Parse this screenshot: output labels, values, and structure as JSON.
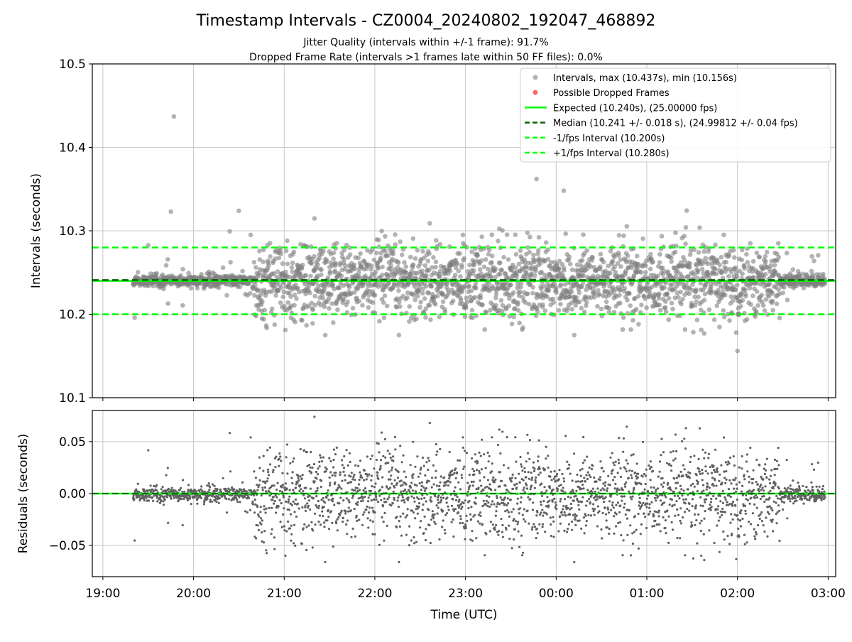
{
  "colors": {
    "intervals": "#808080",
    "dropped": "#ff0000",
    "expected": "#00ff00",
    "median": "#006400",
    "fps_interval": "#00ff00",
    "residuals": "#606060",
    "grid": "#c8c8c8"
  },
  "chart_data": [
    {
      "type": "scatter",
      "title": "Timestamp Intervals - CZ0004_20240802_192047_468892",
      "subtitle_lines": [
        "Jitter Quality (intervals within +/-1 frame): 91.7%",
        "Dropped Frame Rate (intervals >1 frames late within 50 FF files): 0.0%"
      ],
      "xlabel": "",
      "ylabel": "Intervals (seconds)",
      "ylim": [
        10.1,
        10.5
      ],
      "yticks": [
        "10.1",
        "10.2",
        "10.3",
        "10.4",
        "10.5"
      ],
      "x_axis": {
        "start": "19:00",
        "end": "03:00",
        "data_start": "19:20",
        "data_end": "02:58"
      },
      "grid": true,
      "legend_position": "top-right",
      "series": [
        {
          "name": "Intervals, max (10.437s), min (10.156s)",
          "kind": "points",
          "max": 10.437,
          "min": 10.156,
          "center": 10.241,
          "outliers": [
            {
              "x": "19:47",
              "y": 10.437
            },
            {
              "x": "23:47",
              "y": 10.362
            },
            {
              "x": "00:05",
              "y": 10.348
            },
            {
              "x": "02:00",
              "y": 10.156
            },
            {
              "x": "01:38",
              "y": 10.177
            },
            {
              "x": "00:12",
              "y": 10.175
            },
            {
              "x": "19:45",
              "y": 10.323
            },
            {
              "x": "20:30",
              "y": 10.324
            }
          ]
        },
        {
          "name": "Possible Dropped Frames",
          "kind": "points",
          "values": []
        },
        {
          "name": "Expected (10.240s), (25.00000 fps)",
          "kind": "hline",
          "y": 10.24
        },
        {
          "name": "Median (10.241 +/- 0.018 s), (24.99812 +/- 0.04 fps)",
          "kind": "hline",
          "y": 10.241
        },
        {
          "name": "-1/fps Interval (10.200s)",
          "kind": "hline",
          "y": 10.2
        },
        {
          "name": "+1/fps Interval (10.280s)",
          "kind": "hline",
          "y": 10.28
        }
      ]
    },
    {
      "type": "scatter",
      "xlabel": "Time (UTC)",
      "ylabel": "Residuals (seconds)",
      "ylim": [
        -0.08,
        0.08
      ],
      "yticks": [
        "−0.05",
        "0.00",
        "0.05"
      ],
      "ytick_values": [
        -0.05,
        0.0,
        0.05
      ],
      "xticks": [
        "19:00",
        "20:00",
        "21:00",
        "22:00",
        "23:00",
        "00:00",
        "01:00",
        "02:00",
        "03:00"
      ],
      "grid": true,
      "zero_line": 0.0
    }
  ]
}
